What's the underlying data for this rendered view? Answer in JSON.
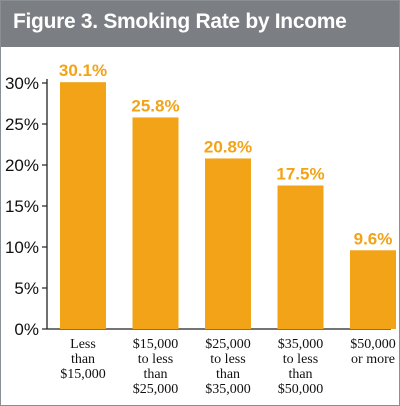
{
  "title": "Figure 3. Smoking Rate by Income",
  "colors": {
    "bar": "#f2a318",
    "title_bar": "#7b7f83",
    "axis": "#222222"
  },
  "chart_data": {
    "type": "bar",
    "title": "Figure 3. Smoking Rate by Income",
    "xlabel": "",
    "ylabel": "",
    "ylim": [
      0,
      30
    ],
    "yticks": [
      "0%",
      "5%",
      "10%",
      "15%",
      "20%",
      "25%",
      "30%"
    ],
    "categories": [
      [
        "Less",
        "than",
        "$15,000"
      ],
      [
        "$15,000",
        "to less",
        "than",
        "$25,000"
      ],
      [
        "$25,000",
        "to less",
        "than",
        "$35,000"
      ],
      [
        "$35,000",
        "to less",
        "than",
        "$50,000"
      ],
      [
        "$50,000",
        "or more"
      ]
    ],
    "values": [
      30.1,
      25.8,
      20.8,
      17.5,
      9.6
    ],
    "data_labels": [
      "30.1%",
      "25.8%",
      "20.8%",
      "17.5%",
      "9.6%"
    ],
    "grid": false
  }
}
